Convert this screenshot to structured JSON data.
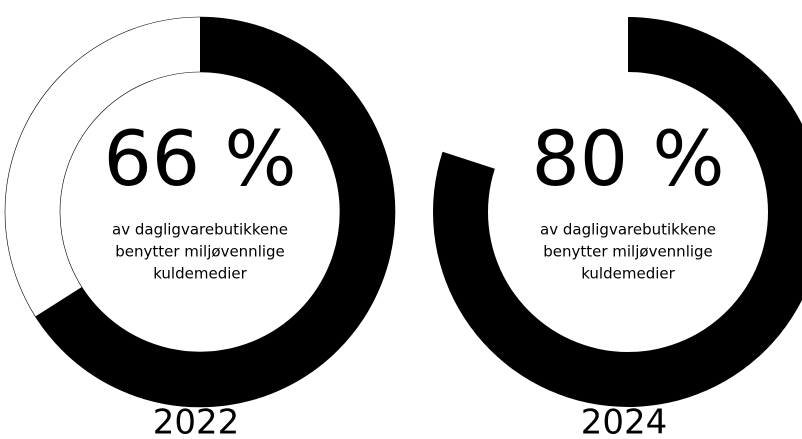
{
  "chart_data": [
    {
      "type": "donut",
      "values": [
        66
      ],
      "value_labels": [
        "66 %"
      ],
      "color": "#000000",
      "outline": true,
      "text_lines": [
        "av dagligvarebutikkene",
        "benytter miljøvennlige",
        "kuldemedier"
      ],
      "label": "2022"
    },
    {
      "type": "donut",
      "values": [
        80
      ],
      "value_labels": [
        "80 %"
      ],
      "color": "#000000",
      "outline": false,
      "text_lines": [
        "av dagligvarebutikkene",
        "benytter miljøvennlige",
        "kuldemedier"
      ],
      "label": "2024"
    }
  ]
}
